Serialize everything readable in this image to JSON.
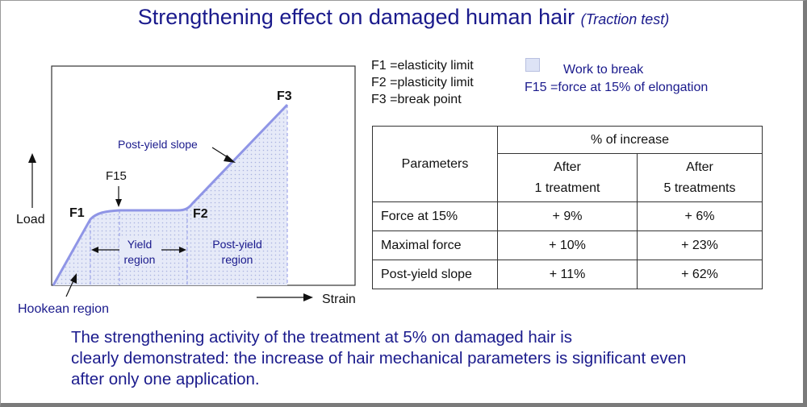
{
  "title": {
    "main": "Strengthening effect on damaged human hair",
    "sub": "(Traction test)"
  },
  "diagram": {
    "axis_y_label": "Load",
    "axis_x_label": "Strain",
    "points": {
      "f1": "F1",
      "f15": "F15",
      "f2": "F2",
      "f3": "F3"
    },
    "labels": {
      "post_yield_slope": "Post-yield slope",
      "yield_region_l1": "Yield",
      "yield_region_l2": "region",
      "post_yield_region_l1": "Post-yield",
      "post_yield_region_l2": "region",
      "hookean_region": "Hookean region"
    }
  },
  "legend": {
    "items": [
      {
        "key": "F1",
        "eq": "=",
        "text": "elasticity limit"
      },
      {
        "key": "F2",
        "eq": "=",
        "text": "plasticity limit"
      },
      {
        "key": "F3",
        "eq": "=",
        "text": "break point"
      }
    ],
    "work_to_break": "Work to break",
    "f15_key": "F15",
    "f15_eq": "=",
    "f15_text": "force at 15% of elongation"
  },
  "table": {
    "header_params": "Parameters",
    "header_increase": "% of increase",
    "col1_l1": "After",
    "col1_l2": "1 treatment",
    "col2_l1": "After",
    "col2_l2": "5 treatments",
    "rows": [
      {
        "param": "Force at 15%",
        "after1": "+ 9%",
        "after5": "+ 6%"
      },
      {
        "param": "Maximal force",
        "after1": "+ 10%",
        "after5": "+ 23%"
      },
      {
        "param": "Post-yield slope",
        "after1": "+ 11%",
        "after5": "+ 62%"
      }
    ]
  },
  "conclusion": {
    "line1": "The strengthening activity of the treatment at 5% on damaged hair is",
    "line2": "clearly demonstrated: the increase of hair mechanical parameters is significant even",
    "line3": "after only one application."
  },
  "colors": {
    "title": "#1a1a8c",
    "curve": "#8f95e6",
    "fill": "#dde3f6",
    "text": "#111111"
  }
}
